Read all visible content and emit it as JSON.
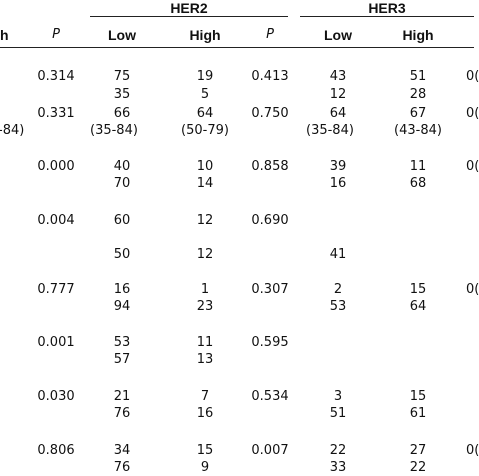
{
  "table": {
    "groups": [
      "HER2",
      "HER3"
    ],
    "columns": [
      "h",
      "P",
      "Low",
      "High",
      "P",
      "Low",
      "High"
    ],
    "rows": [
      [
        "",
        "0.314",
        "75",
        "19",
        "0.413",
        "43",
        "51",
        "0("
      ],
      [
        "",
        "",
        "35",
        "5",
        "",
        "12",
        "28",
        ""
      ],
      [
        "",
        "0.331",
        "66",
        "64",
        "0.750",
        "64",
        "67",
        "0("
      ],
      [
        "-84)",
        "",
        "(35-84)",
        "(50-79)",
        "",
        "(35-84)",
        "(43-84)",
        ""
      ],
      [
        "",
        "0.000",
        "40",
        "10",
        "0.858",
        "39",
        "11",
        "0("
      ],
      [
        "",
        "",
        "70",
        "14",
        "",
        "16",
        "68",
        ""
      ],
      [
        "",
        "0.004",
        "60",
        "12",
        "0.690",
        "",
        "",
        ""
      ],
      [
        "",
        "",
        "50",
        "12",
        "",
        "41",
        "",
        ""
      ],
      [
        "",
        "0.777",
        "16",
        "1",
        "0.307",
        "2",
        "15",
        "0("
      ],
      [
        "",
        "",
        "94",
        "23",
        "",
        "53",
        "64",
        ""
      ],
      [
        "",
        "0.001",
        "53",
        "11",
        "0.595",
        "",
        "",
        ""
      ],
      [
        "",
        "",
        "57",
        "13",
        "",
        "",
        "",
        ""
      ],
      [
        "",
        "0.030",
        "21",
        "7",
        "0.534",
        "3",
        "15",
        ""
      ],
      [
        "",
        "",
        "76",
        "16",
        "",
        "51",
        "61",
        ""
      ],
      [
        "",
        "0.806",
        "34",
        "15",
        "0.007",
        "22",
        "27",
        "0("
      ],
      [
        "",
        "",
        "76",
        "9",
        "",
        "33",
        "22",
        ""
      ]
    ]
  }
}
